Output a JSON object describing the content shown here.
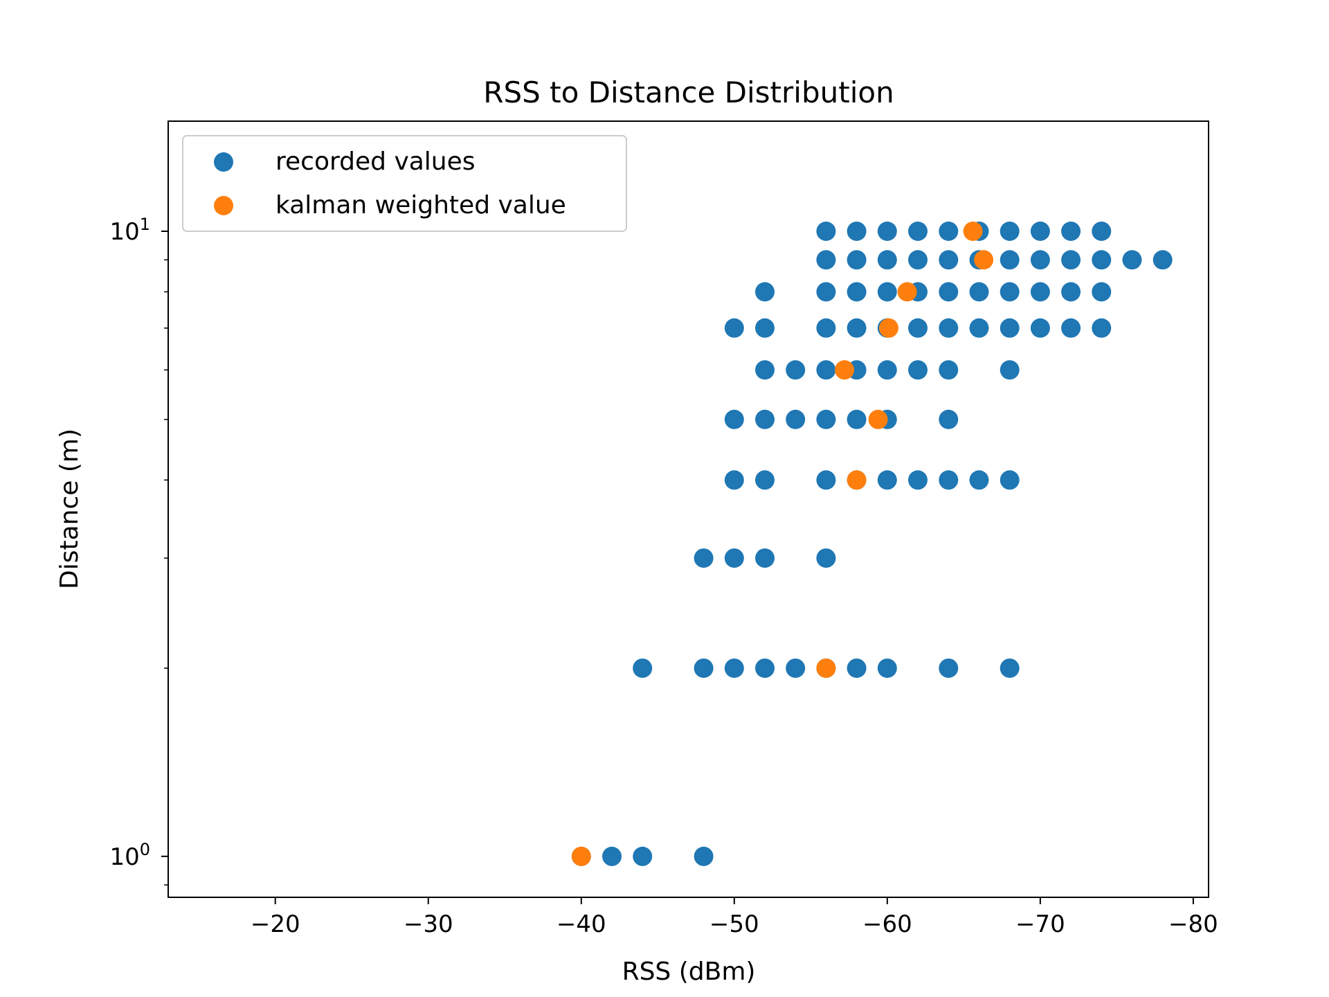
{
  "chart_data": {
    "type": "scatter",
    "title": "RSS to Distance Distribution",
    "xlabel": "RSS (dBm)",
    "ylabel": "Distance (m)",
    "xlim": [
      -13,
      -81
    ],
    "x_inverted": true,
    "ylim": [
      0.86,
      15
    ],
    "y_scale": "log",
    "x_ticks": [
      -20,
      -30,
      -40,
      -50,
      -60,
      -70,
      -80
    ],
    "x_tick_labels": [
      "−20",
      "−30",
      "−40",
      "−50",
      "−60",
      "−70",
      "−80"
    ],
    "y_ticks": [
      1,
      10
    ],
    "y_tick_labels": [
      {
        "base": "10",
        "exp": "0"
      },
      {
        "base": "10",
        "exp": "1"
      }
    ],
    "legend": {
      "position": "top-left"
    },
    "series": [
      {
        "name": "recorded values",
        "color": "#1f77b4",
        "points": [
          [
            -56,
            10
          ],
          [
            -58,
            10
          ],
          [
            -60,
            10
          ],
          [
            -62,
            10
          ],
          [
            -64,
            10
          ],
          [
            -66,
            10
          ],
          [
            -68,
            10
          ],
          [
            -70,
            10
          ],
          [
            -72,
            10
          ],
          [
            -74,
            10
          ],
          [
            -56,
            9
          ],
          [
            -58,
            9
          ],
          [
            -60,
            9
          ],
          [
            -62,
            9
          ],
          [
            -64,
            9
          ],
          [
            -66,
            9
          ],
          [
            -68,
            9
          ],
          [
            -70,
            9
          ],
          [
            -72,
            9
          ],
          [
            -74,
            9
          ],
          [
            -76,
            9
          ],
          [
            -78,
            9
          ],
          [
            -52,
            8
          ],
          [
            -56,
            8
          ],
          [
            -58,
            8
          ],
          [
            -60,
            8
          ],
          [
            -62,
            8
          ],
          [
            -64,
            8
          ],
          [
            -66,
            8
          ],
          [
            -68,
            8
          ],
          [
            -70,
            8
          ],
          [
            -72,
            8
          ],
          [
            -74,
            8
          ],
          [
            -50,
            7
          ],
          [
            -52,
            7
          ],
          [
            -56,
            7
          ],
          [
            -58,
            7
          ],
          [
            -60,
            7
          ],
          [
            -62,
            7
          ],
          [
            -64,
            7
          ],
          [
            -66,
            7
          ],
          [
            -68,
            7
          ],
          [
            -70,
            7
          ],
          [
            -72,
            7
          ],
          [
            -74,
            7
          ],
          [
            -52,
            6
          ],
          [
            -54,
            6
          ],
          [
            -56,
            6
          ],
          [
            -58,
            6
          ],
          [
            -60,
            6
          ],
          [
            -62,
            6
          ],
          [
            -64,
            6
          ],
          [
            -68,
            6
          ],
          [
            -50,
            5
          ],
          [
            -52,
            5
          ],
          [
            -54,
            5
          ],
          [
            -56,
            5
          ],
          [
            -58,
            5
          ],
          [
            -60,
            5
          ],
          [
            -64,
            5
          ],
          [
            -50,
            4
          ],
          [
            -52,
            4
          ],
          [
            -56,
            4
          ],
          [
            -58,
            4
          ],
          [
            -60,
            4
          ],
          [
            -62,
            4
          ],
          [
            -64,
            4
          ],
          [
            -66,
            4
          ],
          [
            -68,
            4
          ],
          [
            -48,
            3
          ],
          [
            -50,
            3
          ],
          [
            -52,
            3
          ],
          [
            -56,
            3
          ],
          [
            -44,
            2
          ],
          [
            -48,
            2
          ],
          [
            -50,
            2
          ],
          [
            -52,
            2
          ],
          [
            -54,
            2
          ],
          [
            -56,
            2
          ],
          [
            -58,
            2
          ],
          [
            -60,
            2
          ],
          [
            -64,
            2
          ],
          [
            -68,
            2
          ],
          [
            -40,
            1
          ],
          [
            -42,
            1
          ],
          [
            -44,
            1
          ],
          [
            -48,
            1
          ]
        ]
      },
      {
        "name": "kalman weighted value",
        "color": "#ff7f0e",
        "points": [
          [
            -65.6,
            10
          ],
          [
            -66.3,
            9
          ],
          [
            -61.3,
            8
          ],
          [
            -60.1,
            7
          ],
          [
            -57.2,
            6
          ],
          [
            -59.4,
            5
          ],
          [
            -58,
            4
          ],
          [
            -56,
            2
          ],
          [
            -40,
            1
          ]
        ]
      }
    ]
  }
}
